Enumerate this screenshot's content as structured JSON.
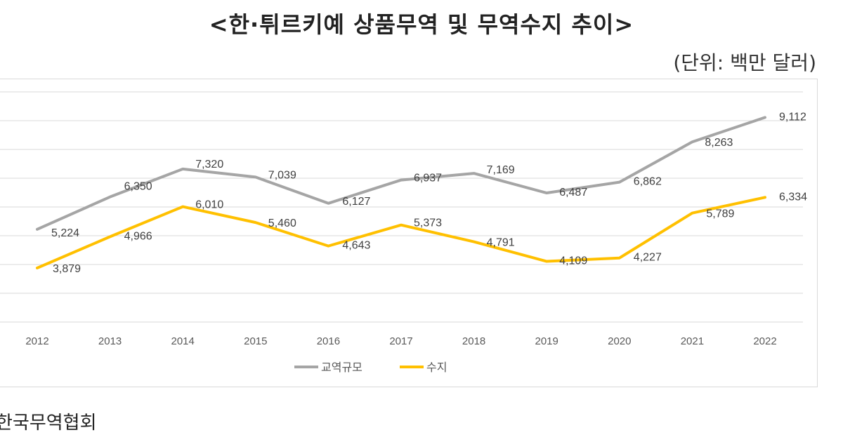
{
  "title": "<한·튀르키예 상품무역 및 무역수지 추이>",
  "unit_label": "(단위: 백만 달러)",
  "source": "한국무역협회",
  "chart_data": {
    "type": "line",
    "x": [
      "2012",
      "2013",
      "2014",
      "2015",
      "2016",
      "2017",
      "2018",
      "2019",
      "2020",
      "2021",
      "2022"
    ],
    "series": [
      {
        "name": "교역규모",
        "color": "#a5a5a5",
        "values": [
          5224,
          6350,
          7320,
          7039,
          6127,
          6937,
          7169,
          6487,
          6862,
          8263,
          9112
        ],
        "labels": [
          "5,224",
          "6,350",
          "7,320",
          "7,039",
          "6,127",
          "6,937",
          "7,169",
          "6,487",
          "6,862",
          "8,263",
          "9,112"
        ]
      },
      {
        "name": "수지",
        "color": "#ffc000",
        "values": [
          3879,
          4966,
          6010,
          5460,
          4643,
          5373,
          4791,
          4109,
          4227,
          5789,
          6334
        ],
        "labels": [
          "3,879",
          "4,966",
          "6,010",
          "5,460",
          "4,643",
          "5,373",
          "4,791",
          "4,109",
          "4,227",
          "5,789",
          "6,334"
        ]
      }
    ],
    "ylim": [
      2000,
      10000
    ],
    "grid": true,
    "legend": "bottom"
  }
}
